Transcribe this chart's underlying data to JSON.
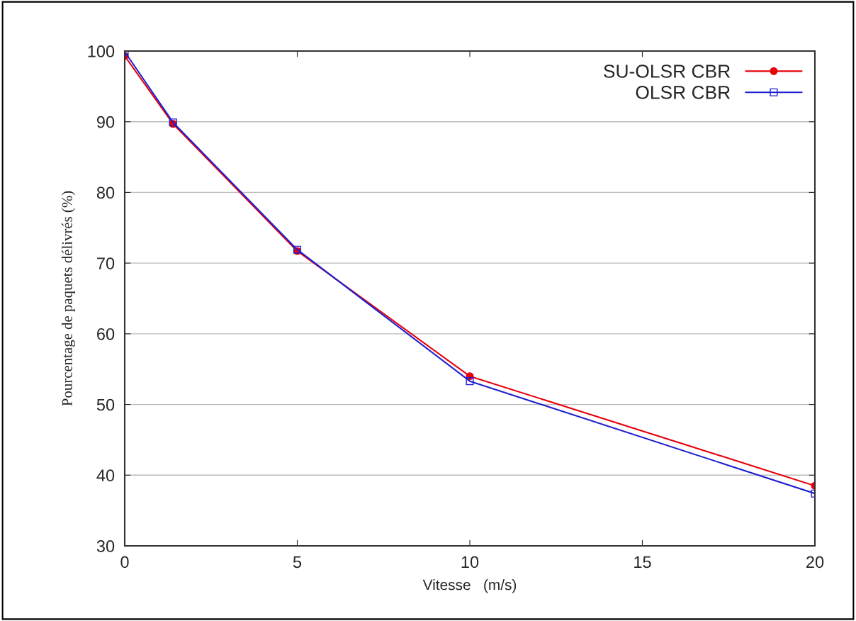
{
  "chart_data": {
    "type": "line",
    "xlabel": "Vitesse   (m/s)",
    "ylabel": "Pourcentage de paquets délivrés (%)",
    "x": [
      0,
      1.4,
      5,
      10,
      20
    ],
    "series": [
      {
        "name": "SU-OLSR CBR",
        "color": "#e8000b",
        "marker": "circle",
        "values": [
          99.3,
          89.7,
          71.7,
          54.0,
          38.5
        ]
      },
      {
        "name": "OLSR CBR",
        "color": "#2020d0",
        "marker": "square",
        "values": [
          99.9,
          89.9,
          71.9,
          53.3,
          37.4
        ]
      }
    ],
    "xlim": [
      0,
      20
    ],
    "xticks": [
      0,
      5,
      10,
      15,
      20
    ],
    "ylim": [
      30,
      100
    ],
    "yticks": [
      30,
      40,
      50,
      60,
      70,
      80,
      90,
      100
    ],
    "grid": "y",
    "legend": "top right",
    "line_style": "solid"
  }
}
